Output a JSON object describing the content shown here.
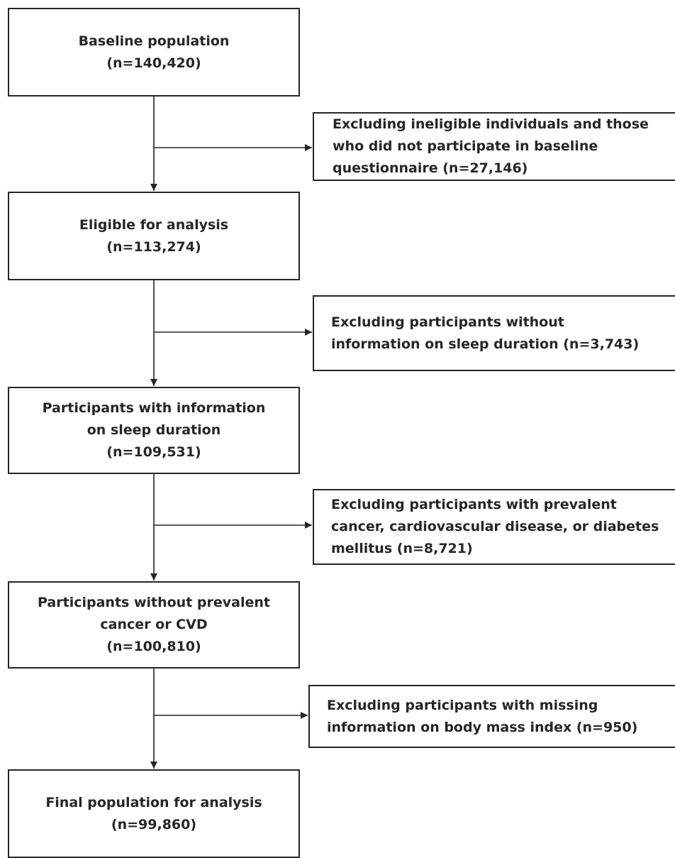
{
  "main_boxes": [
    {
      "id": "baseline",
      "lines": [
        "Baseline population",
        "(n=140,420)"
      ]
    },
    {
      "id": "eligible",
      "lines": [
        "Eligible for analysis",
        "(n=113,274)"
      ]
    },
    {
      "id": "sleep-info",
      "lines": [
        "Participants with information",
        "on sleep duration",
        "(n=109,531)"
      ]
    },
    {
      "id": "no-prevalent",
      "lines": [
        "Participants without prevalent",
        "cancer or CVD",
        "(n=100,810)"
      ]
    },
    {
      "id": "final",
      "lines": [
        "Final population for analysis",
        "(n=99,860)"
      ]
    }
  ],
  "exclusion_boxes": [
    {
      "id": "ineligible",
      "lines": [
        "Excluding ineligible individuals and those",
        "who did not participate in baseline",
        "questionnaire (n=27,146)"
      ]
    },
    {
      "id": "no-sleep",
      "lines": [
        "Excluding participants without",
        "information on sleep duration (n=3,743)"
      ]
    },
    {
      "id": "prevalent",
      "lines": [
        "Excluding participants with prevalent",
        "cancer, cardiovascular disease, or diabetes",
        "mellitus (n=8,721)"
      ]
    },
    {
      "id": "no-bmi",
      "lines": [
        "Excluding participants with missing",
        "information on body mass index (n=950)"
      ]
    }
  ],
  "colors": {
    "line": "#262626",
    "background": "#ffffff"
  }
}
